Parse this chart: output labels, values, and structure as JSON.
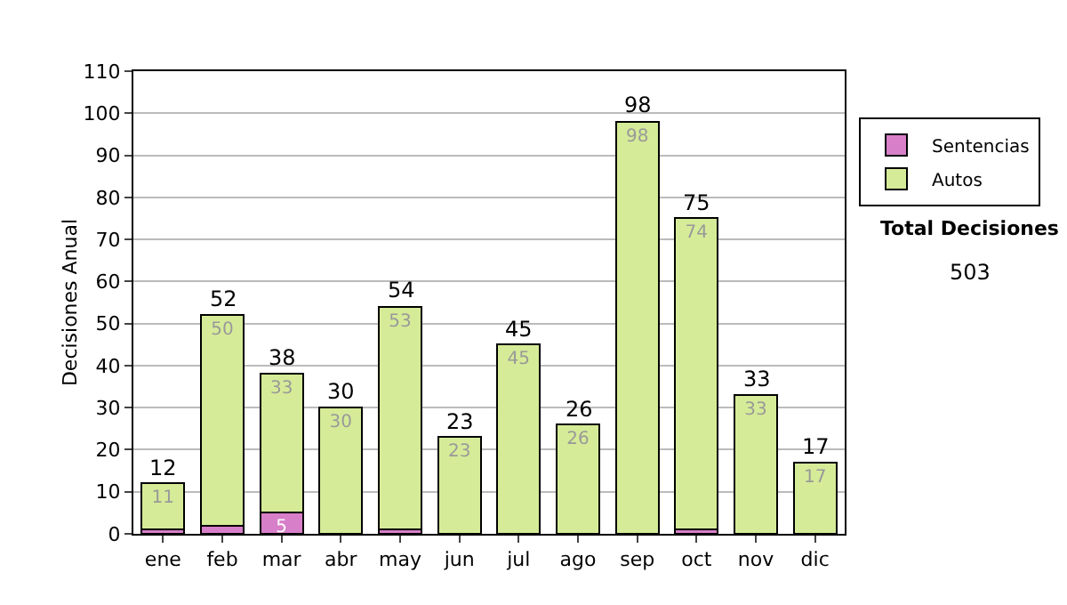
{
  "chart_data": {
    "type": "bar",
    "stacked": true,
    "ylabel": "Decisiones Anual",
    "categories": [
      "ene",
      "feb",
      "mar",
      "abr",
      "may",
      "jun",
      "jul",
      "ago",
      "sep",
      "oct",
      "nov",
      "dic"
    ],
    "series": [
      {
        "name": "Sentencias",
        "color": "#d77fc9",
        "values": [
          1,
          2,
          5,
          0,
          1,
          0,
          0,
          0,
          0,
          1,
          0,
          0
        ],
        "value_labels": [
          null,
          null,
          "5",
          null,
          null,
          null,
          null,
          null,
          null,
          null,
          null,
          null
        ]
      },
      {
        "name": "Autos",
        "color": "#d5eb98",
        "values": [
          11,
          50,
          33,
          30,
          53,
          23,
          45,
          26,
          98,
          74,
          33,
          17
        ],
        "value_labels": [
          "11",
          "50",
          "33",
          "30",
          "53",
          "23",
          "45",
          "26",
          "98",
          "74",
          "33",
          "17"
        ]
      }
    ],
    "totals": [
      "12",
      "52",
      "38",
      "30",
      "54",
      "23",
      "45",
      "26",
      "98",
      "75",
      "33",
      "17"
    ],
    "ylim": [
      0,
      110
    ],
    "yticks": [
      0,
      10,
      20,
      30,
      40,
      50,
      60,
      70,
      80,
      90,
      100,
      110
    ],
    "grid": "y",
    "legend": "right",
    "annotations": [
      "Total Decisiones",
      "503"
    ]
  }
}
